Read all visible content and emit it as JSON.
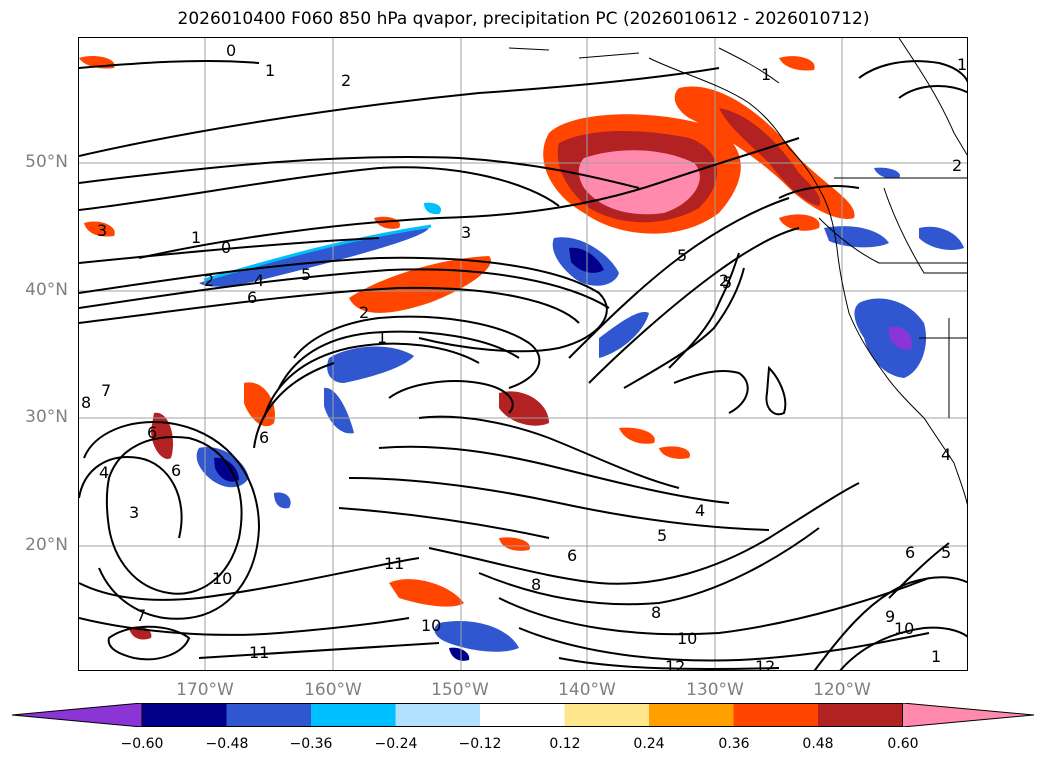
{
  "title": "2026010400 F060 850 hPa qvapor, precipitation PC (2026010612 - 2026010712)",
  "lat_labels": [
    "50°N",
    "40°N",
    "30°N",
    "20°N"
  ],
  "lon_labels": [
    "170°W",
    "160°W",
    "150°W",
    "140°W",
    "130°W",
    "120°W"
  ],
  "colorbar": {
    "tick_labels": [
      "−0.60",
      "−0.48",
      "−0.36",
      "−0.24",
      "−0.12",
      "0.12",
      "0.24",
      "0.36",
      "0.48",
      "0.60"
    ],
    "colors": [
      "#8b35d6",
      "#00008b",
      "#3157d0",
      "#00bfff",
      "#b0e2ff",
      "#ffffff",
      "#ffe68c",
      "#ff9f00",
      "#ff4500",
      "#b22222",
      "#ff8aad"
    ]
  },
  "contour_labels": [
    "0",
    "1",
    "2",
    "1",
    "3",
    "1",
    "0",
    "3",
    "5",
    "2",
    "4",
    "5",
    "6",
    "2",
    "1",
    "5",
    "2",
    "7",
    "8",
    "6",
    "6",
    "4",
    "6",
    "3",
    "10",
    "7",
    "11",
    "10",
    "11",
    "6",
    "8",
    "5",
    "4",
    "8",
    "10",
    "12",
    "12",
    "6",
    "5",
    "9",
    "10",
    "1",
    "4",
    "1",
    "2"
  ],
  "colors": {
    "grid": "#a0a0a0",
    "contour": "#000000",
    "coast": "#000000"
  }
}
